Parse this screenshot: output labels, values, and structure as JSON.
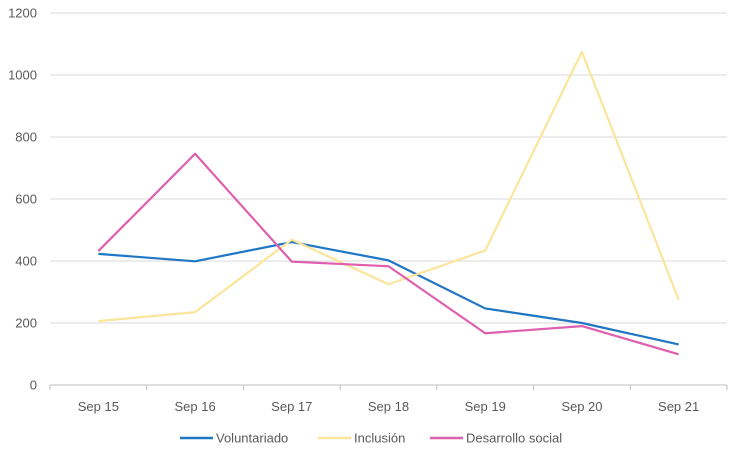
{
  "chart_data": {
    "type": "line",
    "title": "",
    "xlabel": "",
    "ylabel": "",
    "categories": [
      "Sep 15",
      "Sep 16",
      "Sep 17",
      "Sep 18",
      "Sep 19",
      "Sep 20",
      "Sep 21"
    ],
    "ylim": [
      0,
      1200
    ],
    "yticks": [
      0,
      200,
      400,
      600,
      800,
      1000,
      1200
    ],
    "grid": true,
    "legend_position": "bottom",
    "series": [
      {
        "name": "Voluntariado",
        "color": "#1f77c4",
        "values": [
          423,
          399,
          461,
          402,
          247,
          200,
          131
        ]
      },
      {
        "name": "Inclusión",
        "color": "#fbe59a",
        "values": [
          206,
          235,
          469,
          325,
          434,
          1075,
          275
        ]
      },
      {
        "name": "Desarrollo social",
        "color": "#de5fae",
        "values": [
          432,
          746,
          398,
          383,
          167,
          190,
          99
        ]
      }
    ]
  }
}
